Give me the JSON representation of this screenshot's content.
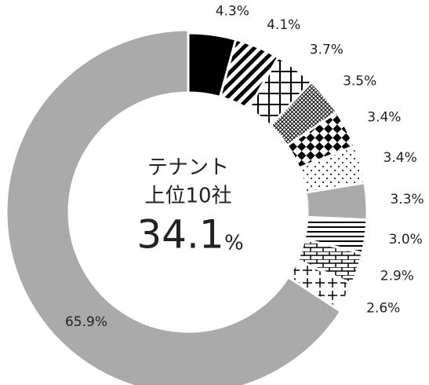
{
  "chart_data": {
    "type": "donut",
    "center_lines": [
      "テナント",
      "上位10社"
    ],
    "center_value": 34.1,
    "center_unit": "%",
    "values": [
      4.3,
      4.1,
      3.7,
      3.5,
      3.4,
      3.4,
      3.3,
      3.0,
      2.9,
      2.6,
      65.9
    ],
    "value_labels": [
      "4.3%",
      "4.1%",
      "3.7%",
      "3.5%",
      "3.4%",
      "3.4%",
      "3.3%",
      "3.0%",
      "2.9%",
      "2.6%",
      "65.9%"
    ]
  }
}
